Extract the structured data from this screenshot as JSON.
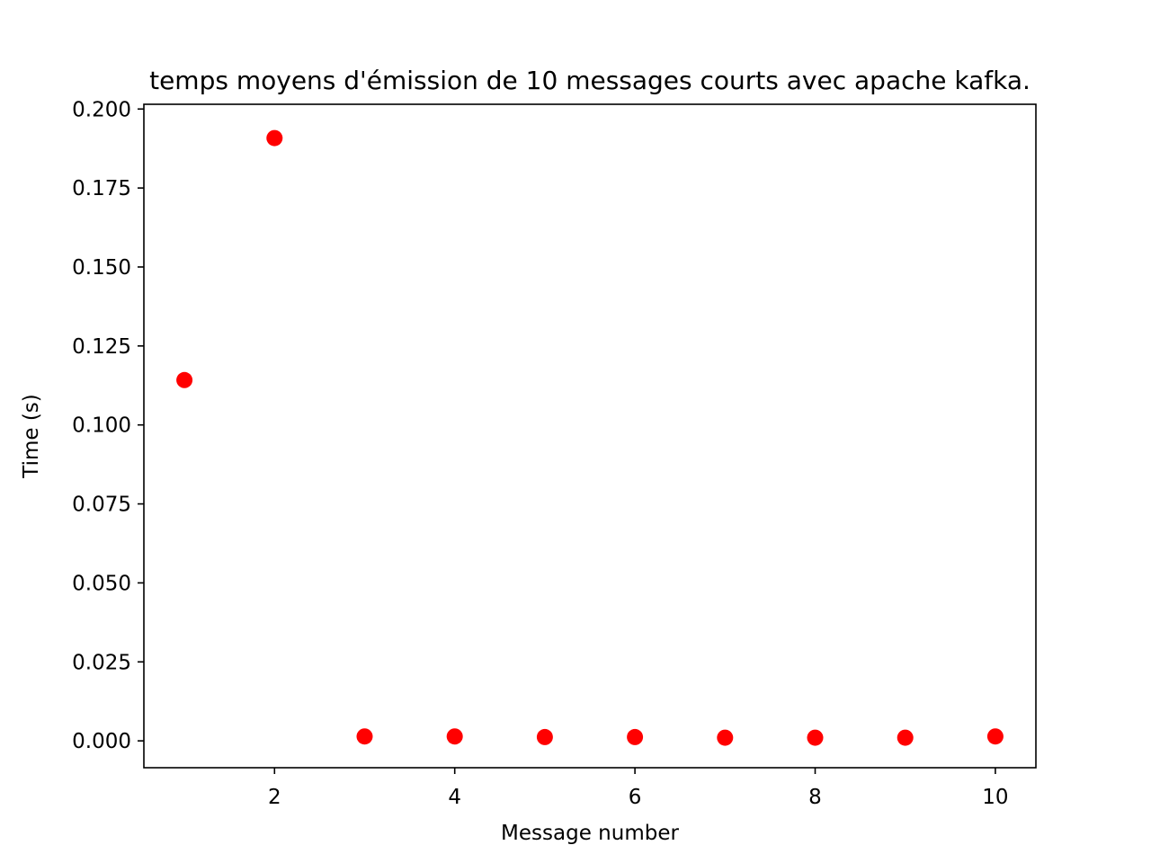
{
  "chart_data": {
    "type": "scatter",
    "title": "temps moyens d'émission de 10 messages courts avec apache kafka.",
    "xlabel": "Message number",
    "ylabel": "Time (s)",
    "xlim": [
      0.55,
      10.45
    ],
    "ylim": [
      -0.0085,
      0.2015
    ],
    "x_ticks": [
      2,
      4,
      6,
      8,
      10
    ],
    "x_tick_labels": [
      "2",
      "4",
      "6",
      "8",
      "10"
    ],
    "y_ticks": [
      0,
      0.025,
      0.05,
      0.075,
      0.1,
      0.125,
      0.15,
      0.175,
      0.2
    ],
    "y_tick_labels": [
      "0.000",
      "0.025",
      "0.050",
      "0.075",
      "0.100",
      "0.125",
      "0.150",
      "0.175",
      "0.200"
    ],
    "grid": false,
    "marker_color": "#ff0000",
    "series": [
      {
        "x": [
          1,
          2,
          3,
          4,
          5,
          6,
          7,
          8,
          9,
          10
        ],
        "y": [
          0.1142,
          0.1908,
          0.0014,
          0.0014,
          0.0012,
          0.0012,
          0.001,
          0.001,
          0.001,
          0.0014
        ]
      }
    ]
  }
}
